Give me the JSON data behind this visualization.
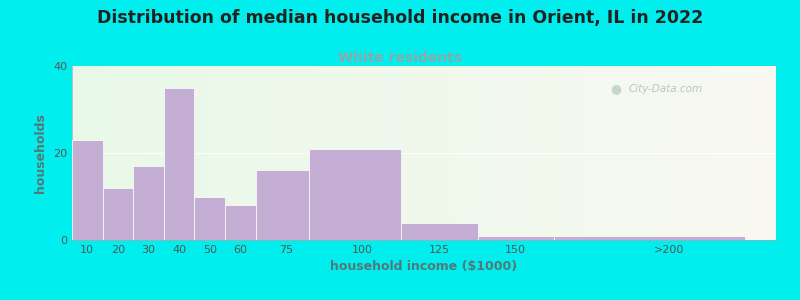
{
  "title": "Distribution of median household income in Orient, IL in 2022",
  "subtitle": "White residents",
  "xlabel": "household income ($1000)",
  "ylabel": "households",
  "title_fontsize": 12.5,
  "subtitle_fontsize": 10,
  "subtitle_color": "#88aaaa",
  "bar_color": "#c4aed4",
  "bar_edgecolor": "#ffffff",
  "background_outer": "#00eeee",
  "background_inner": "#eef8ee",
  "categories": [
    "10",
    "20",
    "30",
    "40",
    "50",
    "60",
    "75",
    "100",
    "125",
    "150",
    ">200"
  ],
  "values": [
    23,
    12,
    17,
    35,
    10,
    8,
    16,
    21,
    4,
    1,
    1
  ],
  "bin_edges": [
    5,
    15,
    25,
    35,
    45,
    55,
    65,
    82.5,
    112.5,
    137.5,
    162.5,
    225
  ],
  "ylim": [
    0,
    40
  ],
  "yticks": [
    0,
    20,
    40
  ],
  "xtick_positions": [
    10,
    20,
    30,
    40,
    50,
    60,
    75,
    100,
    125,
    150,
    200
  ],
  "xtick_labels": [
    "10",
    "20",
    "30",
    "40",
    "50",
    "60",
    "75",
    "100",
    "125",
    "150",
    ">200"
  ],
  "watermark": "City-Data.com",
  "xlim_left": 5,
  "xlim_right": 235
}
